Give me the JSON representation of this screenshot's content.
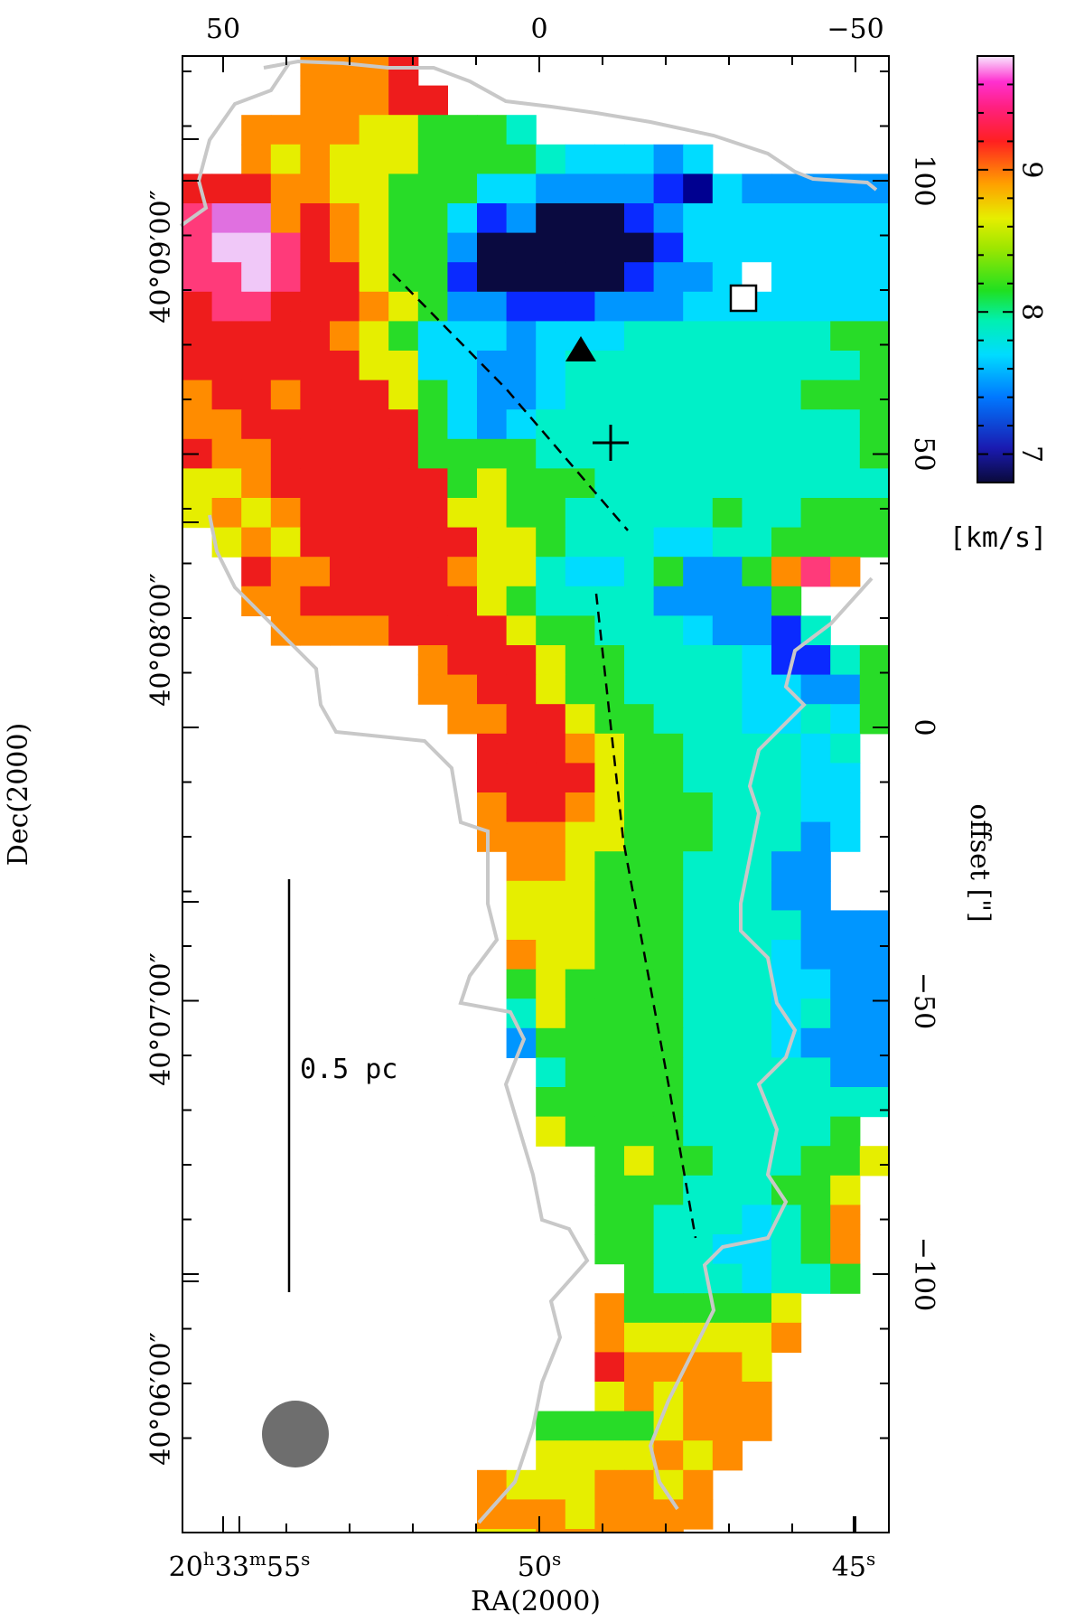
{
  "chart_data": {
    "type": "heatmap",
    "title": "",
    "xlabel": "RA(2000)",
    "ylabel": "Dec(2000)",
    "right_axis_label": "offset [\"]",
    "colorbar_label": "[km/s]",
    "colorbar_range": [
      6.8,
      9.8
    ],
    "colorbar_ticks": [
      {
        "value": 7,
        "label": "7"
      },
      {
        "value": 8,
        "label": "8"
      },
      {
        "value": 9,
        "label": "9"
      }
    ],
    "x_bottom_ticks": [
      {
        "ra_sec": 55,
        "label_main": "20",
        "label_h": "h",
        "label_mid": "33",
        "label_m": "m",
        "label_val": "55",
        "label_s": "s"
      },
      {
        "ra_sec": 50,
        "label_val": "50",
        "label_s": "s"
      },
      {
        "ra_sec": 45,
        "label_val": "45",
        "label_s": "s"
      }
    ],
    "x_top_ticks": [
      {
        "offset": 50,
        "label": "50"
      },
      {
        "offset": 0,
        "label": "0"
      },
      {
        "offset": -50,
        "label": "−50"
      }
    ],
    "y_left_ticks": [
      {
        "dec": "40°09'00\"",
        "label": "40°09′00″"
      },
      {
        "dec": "40°08'00\"",
        "label": "40°08′00″"
      },
      {
        "dec": "40°07'00\"",
        "label": "40°07′00″"
      },
      {
        "dec": "40°06'00\"",
        "label": "40°06′00″"
      }
    ],
    "y_right_ticks": [
      {
        "offset": 100,
        "label": "100"
      },
      {
        "offset": 50,
        "label": "50"
      },
      {
        "offset": 0,
        "label": "0"
      },
      {
        "offset": -50,
        "label": "−50"
      },
      {
        "offset": -100,
        "label": "−100"
      }
    ],
    "scalebar_label": "0.5 pc",
    "markers": [
      "triangle",
      "square",
      "cross"
    ],
    "grid": false,
    "legend": "colorbar right",
    "velocity_map": {
      "x_offset_range": [
        66,
        -59
      ],
      "y_offset_range": [
        122,
        -138
      ],
      "cell_size_arcsec": 5.4,
      "rows": [
        "....OOOR..........................",
        "....OOORR...........................",
        "..OOOOYYGGGc........................",
        "..OYOYYYGGGGcCCCBC..................",
        "RRROOYYGGGCCBBBBbDCBBBBBB",
        "MPPOROYGGCbBdddbBCCCCCCCC",
        "MLLMROYGGBddddddbCCCCCCCC",
        "MMLMRRYGGbdddddbBBCWCCCCC",
        "RMMRRROYGBBbbbBBBCCCCCCCC",
        "RRRRROYGCCCBCCCcccccccGGG",
        "RRRRRRYYCCBBCccccccccccGG",
        "ORRORRRYGCBBCccccccccGGGG",
        "OORRRRRRGCBCcccccccccccGG",
        "ROORRRRRGGGGcccccccccccGG",
        "YYORRRRRRGYGGGccccccccccc",
        "YOYORRRRRYYGGcccccGccGGGG",
        ".YOYRRRRRRYYGcccCCccGGGG",
        "..ROORRRROYYcCCcGBBGOMO",
        "..OORRRRRRYGccccBBBBG",
        "...OOOORRRRYGGcccCBBbc",
        "........ORRRYGGccccCbbcG",
        "........OORRYGGccccCCBBG",
        ".........OORRYGGcccCCcCG",
        "..........RRROYGGccccCc",
        "..........RRRRYGGccccCC",
        "..........ORROYGGGcccCC",
        "..........OOOYYGGGcccBC",
        "...........OOYGGGcccBB",
        "...........YYYGGGcccBB",
        "...........YYYGGGccccBBBB",
        "...........OYYGGGcccCBBB",
        "...........GYGGGGcccCCBBB",
        "...........cYGGGGcccCcBBBBB",
        "...........BGGGGGcccCBBBBBB",
        "............cGGGGcccccBBB",
        "............GGGGGccccccc",
        "............YGGGGcccccG",
        "..............GYGGcccGGY",
        "..............GGGcccGGY",
        "..............GGcccCcGO",
        "..............GGccCCcGO",
        "...............GcccCccG",
        "..............OGGGGGY",
        "..............OYYYYYO",
        "..............ROOOOY",
        "..............YOYOOO",
        "............GGGGYOOO",
        "............YYYYOYO",
        "..........OYYYOOYO",
        "..........OOOYOOOO",
        "..........YYOOOOO"
      ],
      "color_key": {
        "L": "#f0c8f8",
        "P": "#e070e0",
        "M": "#ff3a7a",
        "R": "#ee1c1c",
        "O": "#ff8c00",
        "Y": "#e6ee00",
        "G": "#28dc28",
        "c": "#00f0c8",
        "C": "#00dcff",
        "B": "#0096ff",
        "b": "#0a2aff",
        "D": "#000090",
        "d": "#0a0a40",
        "W": "#ffffff"
      }
    }
  }
}
